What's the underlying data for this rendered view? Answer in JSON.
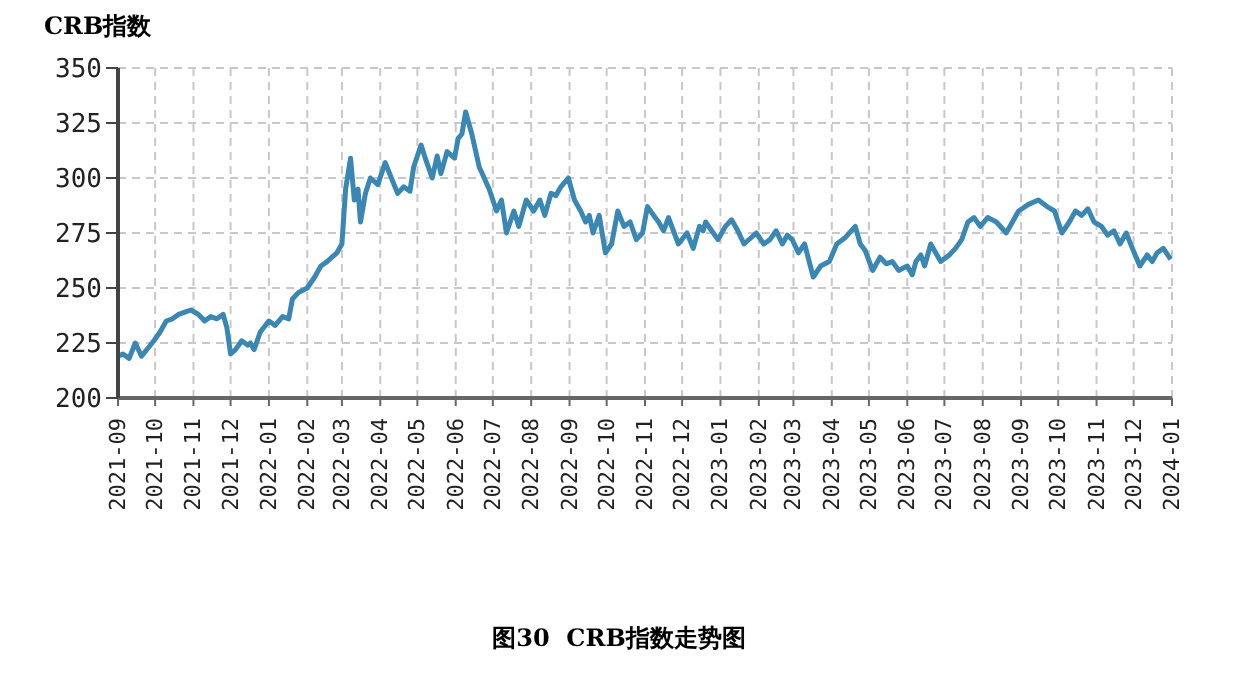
{
  "chart_data": {
    "type": "line",
    "title": "图30  CRB指数走势图",
    "ylabel": "CRB指数",
    "x": [
      "2021-09-01",
      "2021-09-05",
      "2021-09-10",
      "2021-09-15",
      "2021-09-20",
      "2021-09-30",
      "2021-10-05",
      "2021-10-10",
      "2021-10-15",
      "2021-10-20",
      "2021-10-25",
      "2021-10-30",
      "2021-11-05",
      "2021-11-10",
      "2021-11-15",
      "2021-11-20",
      "2021-11-25",
      "2021-11-28",
      "2021-12-01",
      "2021-12-05",
      "2021-12-10",
      "2021-12-15",
      "2021-12-17",
      "2021-12-20",
      "2021-12-25",
      "2022-01-01",
      "2022-01-06",
      "2022-01-12",
      "2022-01-17",
      "2022-01-20",
      "2022-01-25",
      "2022-02-01",
      "2022-02-07",
      "2022-02-12",
      "2022-02-17",
      "2022-02-21",
      "2022-02-25",
      "2022-03-01",
      "2022-03-04",
      "2022-03-08",
      "2022-03-11",
      "2022-03-14",
      "2022-03-16",
      "2022-03-20",
      "2022-03-24",
      "2022-03-30",
      "2022-04-05",
      "2022-04-10",
      "2022-04-15",
      "2022-04-20",
      "2022-04-25",
      "2022-04-28",
      "2022-05-04",
      "2022-05-08",
      "2022-05-13",
      "2022-05-17",
      "2022-05-20",
      "2022-05-25",
      "2022-05-31",
      "2022-06-03",
      "2022-06-06",
      "2022-06-09",
      "2022-06-14",
      "2022-06-20",
      "2022-06-28",
      "2022-07-04",
      "2022-07-08",
      "2022-07-12",
      "2022-07-18",
      "2022-07-22",
      "2022-07-28",
      "2022-08-03",
      "2022-08-08",
      "2022-08-12",
      "2022-08-17",
      "2022-08-21",
      "2022-08-25",
      "2022-08-31",
      "2022-09-05",
      "2022-09-10",
      "2022-09-14",
      "2022-09-17",
      "2022-09-20",
      "2022-09-25",
      "2022-09-30",
      "2022-10-05",
      "2022-10-10",
      "2022-10-15",
      "2022-10-20",
      "2022-10-25",
      "2022-10-30",
      "2022-11-03",
      "2022-11-08",
      "2022-11-12",
      "2022-11-16",
      "2022-11-20",
      "2022-11-28",
      "2022-12-05",
      "2022-12-10",
      "2022-12-15",
      "2022-12-18",
      "2022-12-20",
      "2022-12-30",
      "2023-01-05",
      "2023-01-10",
      "2023-01-15",
      "2023-01-20",
      "2023-01-30",
      "2023-02-05",
      "2023-02-10",
      "2023-02-15",
      "2023-02-20",
      "2023-02-24",
      "2023-02-28",
      "2023-03-05",
      "2023-03-10",
      "2023-03-17",
      "2023-03-23",
      "2023-03-30",
      "2023-04-05",
      "2023-04-12",
      "2023-04-20",
      "2023-04-24",
      "2023-04-28",
      "2023-05-04",
      "2023-05-10",
      "2023-05-15",
      "2023-05-20",
      "2023-05-25",
      "2023-06-01",
      "2023-06-05",
      "2023-06-08",
      "2023-06-12",
      "2023-06-15",
      "2023-06-20",
      "2023-06-28",
      "2023-07-05",
      "2023-07-10",
      "2023-07-15",
      "2023-07-20",
      "2023-07-25",
      "2023-07-30",
      "2023-08-05",
      "2023-08-12",
      "2023-08-20",
      "2023-08-25",
      "2023-08-30",
      "2023-09-07",
      "2023-09-15",
      "2023-09-22",
      "2023-09-28",
      "2023-10-04",
      "2023-10-10",
      "2023-10-15",
      "2023-10-20",
      "2023-10-25",
      "2023-10-30",
      "2023-11-05",
      "2023-11-10",
      "2023-11-15",
      "2023-11-20",
      "2023-11-25",
      "2023-11-30",
      "2023-12-06",
      "2023-12-12",
      "2023-12-16",
      "2023-12-20",
      "2023-12-25",
      "2023-12-31"
    ],
    "series": [
      {
        "color": "#3a87b4",
        "values": [
          219,
          220,
          218,
          225,
          219,
          226,
          230,
          235,
          236,
          238,
          239,
          240,
          238,
          235,
          237,
          236,
          238,
          232,
          220,
          222,
          226,
          224,
          225,
          222,
          230,
          235,
          233,
          237,
          236,
          245,
          248,
          250,
          255,
          260,
          262,
          264,
          266,
          270,
          295,
          309,
          290,
          295,
          280,
          293,
          300,
          297,
          307,
          300,
          293,
          296,
          294,
          305,
          315,
          308,
          300,
          310,
          302,
          312,
          309,
          318,
          320,
          330,
          320,
          305,
          295,
          285,
          290,
          275,
          285,
          278,
          290,
          285,
          290,
          283,
          293,
          292,
          296,
          300,
          290,
          285,
          280,
          283,
          275,
          283,
          266,
          270,
          285,
          278,
          280,
          272,
          275,
          287,
          283,
          280,
          276,
          282,
          270,
          275,
          268,
          278,
          276,
          280,
          272,
          278,
          281,
          276,
          270,
          275,
          270,
          272,
          276,
          270,
          274,
          272,
          266,
          270,
          255,
          260,
          262,
          270,
          273,
          278,
          270,
          267,
          258,
          264,
          261,
          262,
          258,
          260,
          256,
          262,
          265,
          260,
          270,
          262,
          265,
          268,
          272,
          280,
          282,
          278,
          282,
          280,
          275,
          280,
          285,
          288,
          290,
          287,
          285,
          275,
          280,
          285,
          283,
          286,
          280,
          278,
          274,
          276,
          270,
          275,
          268,
          260,
          265,
          262,
          266,
          268,
          263
        ]
      }
    ],
    "xlim": [
      "2021-09",
      "2024-01"
    ],
    "xticks": [
      {
        "value": "2021-09",
        "label": "2021-09"
      },
      {
        "value": "2021-10",
        "label": "2021-10"
      },
      {
        "value": "2021-11",
        "label": "2021-11"
      },
      {
        "value": "2021-12",
        "label": "2021-12"
      },
      {
        "value": "2022-01",
        "label": "2022-01"
      },
      {
        "value": "2022-02",
        "label": "2022-02"
      },
      {
        "value": "2022-03",
        "label": "2022-03"
      },
      {
        "value": "2022-04",
        "label": "2022-04"
      },
      {
        "value": "2022-05",
        "label": "2022-05"
      },
      {
        "value": "2022-06",
        "label": "2022-06"
      },
      {
        "value": "2022-07",
        "label": "2022-07"
      },
      {
        "value": "2022-08",
        "label": "2022-08"
      },
      {
        "value": "2022-09",
        "label": "2022-09"
      },
      {
        "value": "2022-10",
        "label": "2022-10"
      },
      {
        "value": "2022-11",
        "label": "2022-11"
      },
      {
        "value": "2022-12",
        "label": "2022-12"
      },
      {
        "value": "2023-01",
        "label": "2023-01"
      },
      {
        "value": "2023-02",
        "label": "2023-02"
      },
      {
        "value": "2023-03",
        "label": "2023-03"
      },
      {
        "value": "2023-04",
        "label": "2023-04"
      },
      {
        "value": "2023-05",
        "label": "2023-05"
      },
      {
        "value": "2023-06",
        "label": "2023-06"
      },
      {
        "value": "2023-07",
        "label": "2023-07"
      },
      {
        "value": "2023-08",
        "label": "2023-08"
      },
      {
        "value": "2023-09",
        "label": "2023-09"
      },
      {
        "value": "2023-10",
        "label": "2023-10"
      },
      {
        "value": "2023-11",
        "label": "2023-11"
      },
      {
        "value": "2023-12",
        "label": "2023-12"
      },
      {
        "value": "2024-01",
        "label": "2024-01"
      }
    ],
    "ylim": [
      200,
      350
    ],
    "yticks": [
      200,
      225,
      250,
      275,
      300,
      325,
      350
    ],
    "grid": true,
    "marker": "none",
    "line_style": "solid",
    "legend": false
  }
}
